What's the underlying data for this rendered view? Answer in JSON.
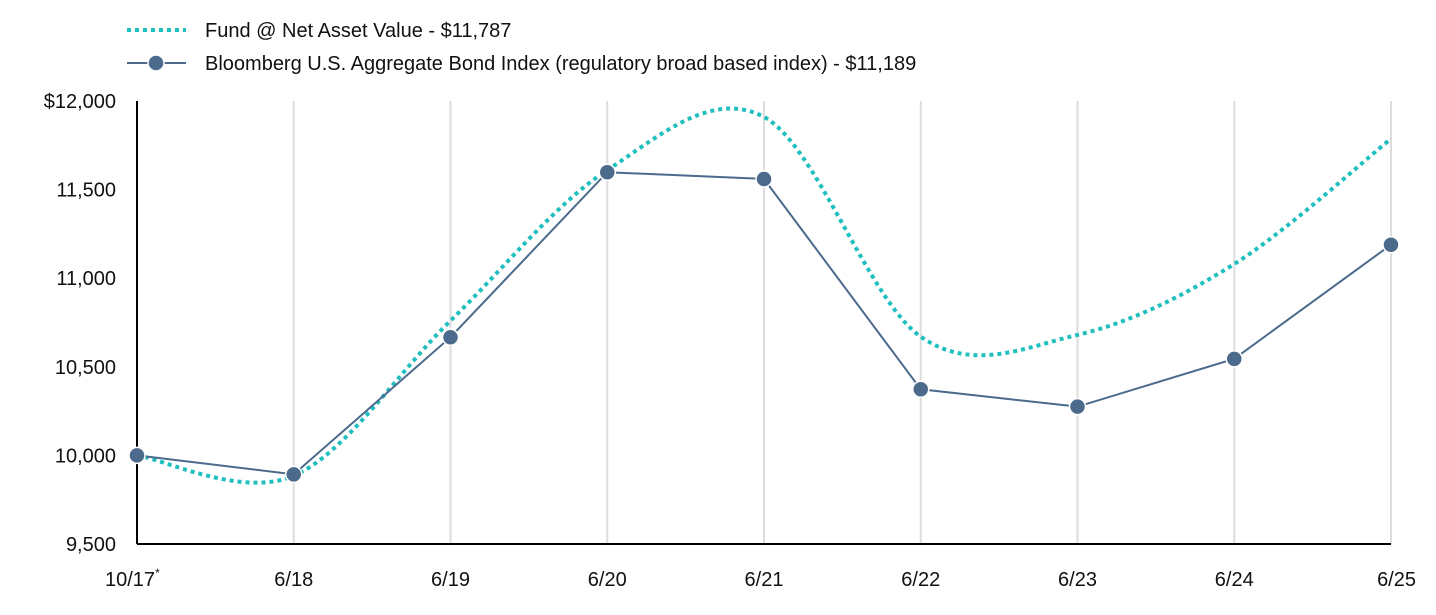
{
  "chart_data": {
    "type": "line",
    "categories": [
      "10/17",
      "6/18",
      "6/19",
      "6/20",
      "6/21",
      "6/22",
      "6/23",
      "6/24",
      "6/25"
    ],
    "category_marker": {
      "index": 0,
      "text": "*"
    },
    "y_ticks": [
      9500,
      10000,
      10500,
      11000,
      11500,
      12000
    ],
    "y_tick_labels": [
      "9,500",
      "10,000",
      "10,500",
      "11,000",
      "11,500",
      "$12,000"
    ],
    "ylim": [
      9500,
      12000
    ],
    "grid": {
      "vertical": true,
      "horizontal": false
    },
    "legend_position": "top-left",
    "series": [
      {
        "name": "Fund @ Net Asset Value - $11,787",
        "values": [
          10000,
          9885,
          10760,
          11610,
          11910,
          10670,
          10680,
          11080,
          11787
        ],
        "style": "dotted-smooth",
        "color": "#1fbfbf"
      },
      {
        "name": "Bloomberg U.S. Aggregate Bond Index (regulatory broad based index) - $11,189",
        "values": [
          10000,
          9893,
          10667,
          11598,
          11560,
          10373,
          10275,
          10545,
          11189
        ],
        "style": "solid-markers",
        "color": "#4b6a8c"
      }
    ],
    "colors": {
      "gridline": "#dddddd",
      "axis": "#000000"
    }
  }
}
